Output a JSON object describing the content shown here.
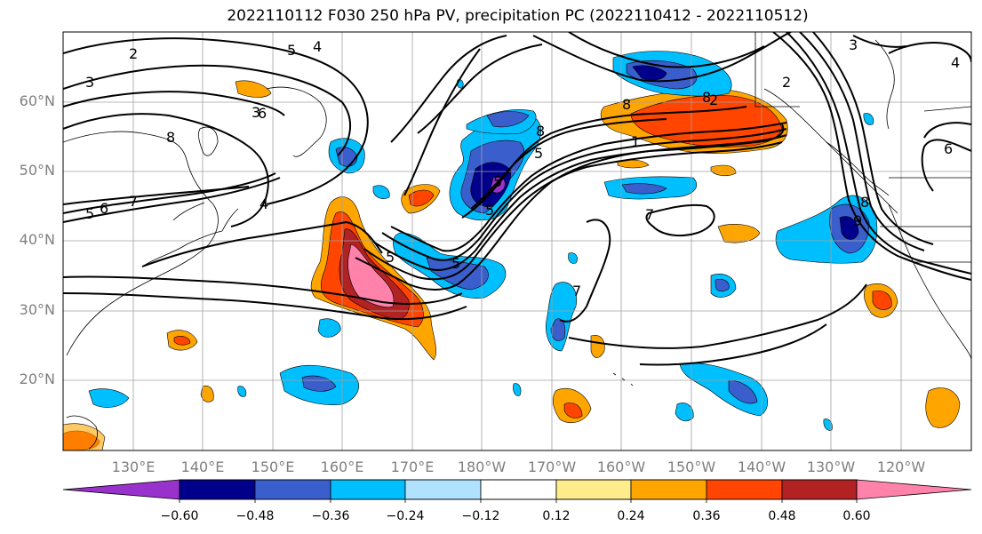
{
  "title": "2022110112 F030 250 hPa PV, precipitation PC (2022110412 - 2022110512)",
  "map": {
    "projection": "equirectangular",
    "lon_range": "120°E to 130°W+ (North Pacific)",
    "lat_range": "10°N to 70°N"
  },
  "lat_labels": [
    "60°N",
    "50°N",
    "40°N",
    "30°N",
    "20°N"
  ],
  "lon_labels": [
    "130°E",
    "140°E",
    "150°E",
    "160°E",
    "170°E",
    "180°W",
    "170°W",
    "160°W",
    "150°W",
    "140°W",
    "130°W",
    "120°W"
  ],
  "contour_labels": [
    "2",
    "3",
    "5",
    "4",
    "3",
    "2",
    "8",
    "7",
    "5",
    "6",
    "5",
    "4",
    "8",
    "5",
    "5",
    "5",
    "8",
    "7",
    "1",
    "2",
    "3",
    "6",
    "8",
    "7",
    "4",
    "5",
    "6",
    "8",
    "9"
  ],
  "colorbar": {
    "ticks": [
      "−0.60",
      "−0.48",
      "−0.36",
      "−0.24",
      "−0.12",
      "0.12",
      "0.24",
      "0.36",
      "0.48",
      "0.60"
    ],
    "colors": [
      "#9932cc",
      "#00008b",
      "#3a5fcd",
      "#00bfff",
      "#b0e2ff",
      "#ffffff",
      "#ffec8b",
      "#ffa500",
      "#ff4500",
      "#b22222",
      "#ff82ab"
    ]
  }
}
